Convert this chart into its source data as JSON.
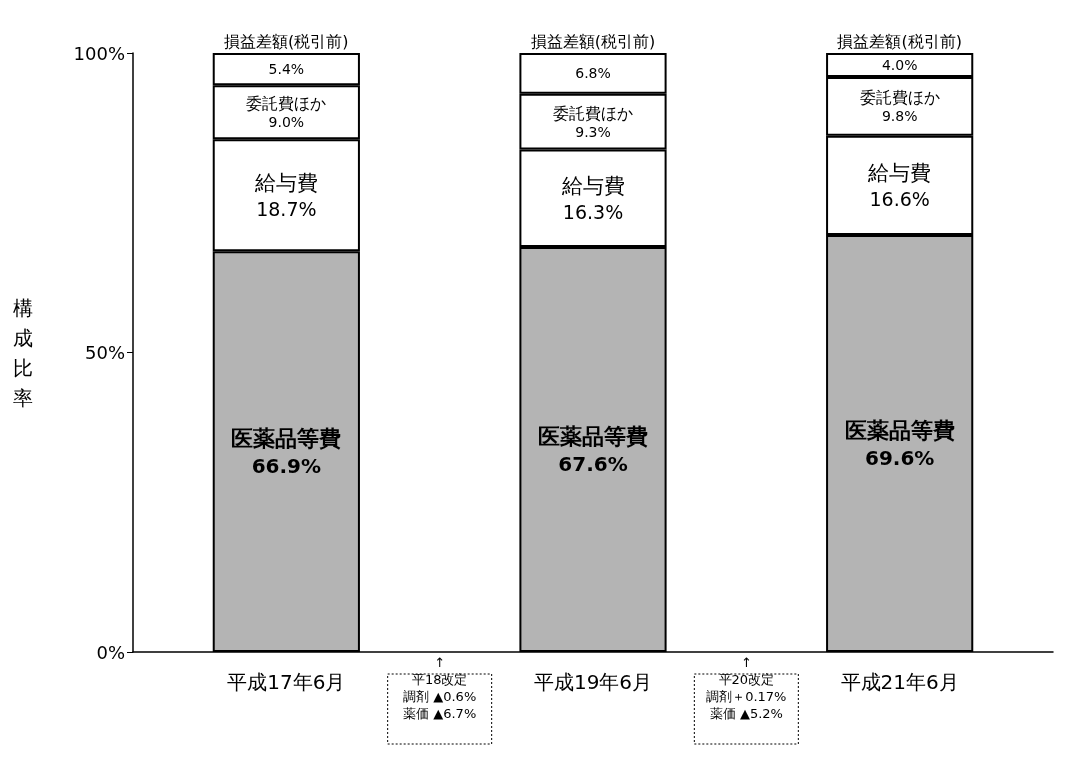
{
  "chart_data": {
    "type": "bar",
    "stacked": true,
    "ylabel": "構成比率",
    "categories": [
      "平成17年6月",
      "平成19年6月",
      "平成21年6月"
    ],
    "ylim": [
      0,
      100
    ],
    "yticks": [
      {
        "value": 0,
        "label": "0%"
      },
      {
        "value": 50,
        "label": "50%"
      },
      {
        "value": 100,
        "label": "100%"
      }
    ],
    "grid": false,
    "legend": false,
    "series": [
      {
        "name": "医薬品等費",
        "color": "#b4b4b4",
        "values": [
          66.9,
          67.6,
          69.6
        ],
        "value_labels": [
          "66.9%",
          "67.6%",
          "69.6%"
        ]
      },
      {
        "name": "給与費",
        "color": "#ffffff",
        "values": [
          18.7,
          16.3,
          16.6
        ],
        "value_labels": [
          "18.7%",
          "16.3%",
          "16.6%"
        ]
      },
      {
        "name": "委託費ほか",
        "color": "#ffffff",
        "values": [
          9.0,
          9.3,
          9.8
        ],
        "value_labels": [
          "9.0%",
          "9.3%",
          "9.8%"
        ]
      },
      {
        "name": "損益差額(税引前)",
        "color": "#ffffff",
        "values": [
          5.4,
          6.8,
          4.0
        ],
        "value_labels": [
          "5.4%",
          "6.8%",
          "4.0%"
        ]
      }
    ],
    "annotations": [
      "↑",
      "平18改定",
      "調剤 ▲0.6%",
      "薬価 ▲6.7%",
      "↑",
      "平20改定",
      "調剤＋0.17%",
      "薬価 ▲5.2%"
    ]
  }
}
